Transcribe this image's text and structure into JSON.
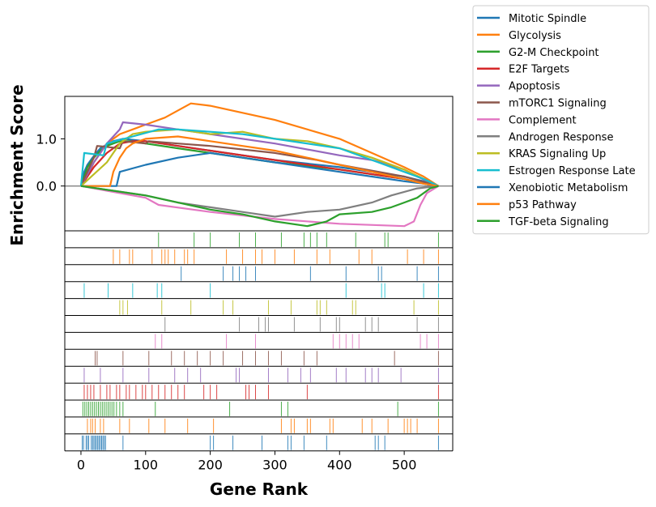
{
  "chart_data": {
    "type": "line",
    "title": "",
    "xlabel": "Gene Rank",
    "ylabel": "Enrichment Score",
    "xlim": [
      -25,
      575
    ],
    "ylim": [
      -0.95,
      1.9
    ],
    "xticks": [
      0,
      100,
      200,
      300,
      400,
      500
    ],
    "yticks": [
      0.0,
      1.0
    ],
    "ytick_labels": [
      "0.0",
      "1.0"
    ],
    "grid": false,
    "legend_position": "outside-top-right",
    "zero_line_color": "#808080",
    "series": [
      {
        "name": "Mitotic Spindle",
        "color": "#1f77b4",
        "x": [
          0,
          5,
          10,
          18,
          25,
          30,
          40,
          50,
          65,
          100,
          150,
          200,
          300,
          400,
          500,
          530,
          553
        ],
        "y": [
          0,
          0.3,
          0.45,
          0.6,
          0.72,
          0.8,
          0.88,
          0.95,
          1.0,
          0.95,
          0.85,
          0.75,
          0.55,
          0.4,
          0.2,
          0.1,
          0
        ],
        "hits": [
          2,
          4,
          8,
          10,
          12,
          16,
          18,
          20,
          22,
          24,
          26,
          28,
          30,
          32,
          34,
          36,
          38,
          65,
          200,
          205,
          235,
          280,
          320,
          325,
          345,
          380,
          455,
          460,
          470,
          553
        ]
      },
      {
        "name": "Glycolysis",
        "color": "#ff7f0e",
        "x": [
          0,
          10,
          20,
          40,
          60,
          80,
          100,
          130,
          170,
          200,
          300,
          400,
          450,
          500,
          530,
          553
        ],
        "y": [
          0,
          0.2,
          0.5,
          0.9,
          1.1,
          1.2,
          1.3,
          1.45,
          1.75,
          1.7,
          1.4,
          1.0,
          0.7,
          0.4,
          0.2,
          0
        ],
        "hits": [
          10,
          15,
          18,
          22,
          30,
          35,
          60,
          75,
          105,
          130,
          165,
          205,
          310,
          325,
          330,
          350,
          355,
          385,
          390,
          435,
          450,
          475,
          500,
          505,
          510,
          520,
          553
        ]
      },
      {
        "name": "G2-M Checkpoint",
        "color": "#2ca02c",
        "x": [
          0,
          5,
          10,
          20,
          30,
          40,
          50,
          60,
          80,
          100,
          150,
          200,
          300,
          400,
          500,
          530,
          553
        ],
        "y": [
          0,
          0.2,
          0.4,
          0.6,
          0.75,
          0.85,
          0.9,
          0.95,
          0.95,
          0.9,
          0.8,
          0.7,
          0.5,
          0.35,
          0.15,
          0.05,
          0
        ],
        "hits": [
          3,
          6,
          9,
          12,
          15,
          18,
          21,
          24,
          27,
          30,
          33,
          36,
          39,
          42,
          45,
          48,
          51,
          55,
          60,
          65,
          115,
          230,
          310,
          320,
          490,
          553
        ]
      },
      {
        "name": "E2F Targets",
        "color": "#d62728",
        "x": [
          0,
          10,
          20,
          30,
          40,
          50,
          60,
          80,
          100,
          150,
          200,
          300,
          400,
          500,
          530,
          553
        ],
        "y": [
          0,
          0.2,
          0.4,
          0.55,
          0.7,
          0.8,
          0.9,
          0.95,
          0.95,
          0.85,
          0.75,
          0.55,
          0.35,
          0.15,
          0.05,
          0
        ],
        "hits": [
          5,
          10,
          15,
          20,
          30,
          40,
          45,
          55,
          60,
          70,
          75,
          85,
          95,
          100,
          110,
          120,
          130,
          140,
          150,
          160,
          190,
          200,
          210,
          255,
          260,
          270,
          290,
          350,
          553
        ]
      },
      {
        "name": "Apoptosis",
        "color": "#9467bd",
        "x": [
          0,
          20,
          40,
          60,
          65,
          100,
          150,
          200,
          300,
          400,
          450,
          500,
          520,
          553
        ],
        "y": [
          0,
          0.5,
          0.9,
          1.2,
          1.35,
          1.3,
          1.2,
          1.1,
          0.9,
          0.65,
          0.55,
          0.35,
          0.2,
          0
        ],
        "hits": [
          5,
          30,
          65,
          105,
          145,
          165,
          185,
          240,
          245,
          290,
          320,
          340,
          355,
          395,
          410,
          440,
          450,
          460,
          495,
          553
        ]
      },
      {
        "name": "mTORC1 Signaling",
        "color": "#8c564b",
        "x": [
          0,
          10,
          20,
          25,
          60,
          65,
          100,
          105,
          150,
          200,
          300,
          365,
          400,
          500,
          553
        ],
        "y": [
          0,
          0.3,
          0.6,
          0.85,
          0.8,
          0.95,
          0.9,
          0.95,
          0.9,
          0.85,
          0.7,
          0.55,
          0.45,
          0.2,
          0
        ],
        "hits": [
          22,
          25,
          65,
          105,
          140,
          160,
          180,
          200,
          220,
          250,
          270,
          290,
          310,
          345,
          365,
          485,
          553
        ]
      },
      {
        "name": "Complement",
        "color": "#e377c2",
        "x": [
          0,
          100,
          120,
          200,
          300,
          400,
          500,
          515,
          525,
          535,
          553
        ],
        "y": [
          0,
          -0.25,
          -0.4,
          -0.55,
          -0.7,
          -0.8,
          -0.85,
          -0.75,
          -0.4,
          -0.15,
          0
        ],
        "hits": [
          115,
          125,
          225,
          270,
          390,
          400,
          410,
          420,
          430,
          525,
          535,
          553
        ]
      },
      {
        "name": "Androgen Response",
        "color": "#7f7f7f",
        "x": [
          0,
          100,
          150,
          200,
          250,
          300,
          350,
          400,
          450,
          480,
          520,
          553
        ],
        "y": [
          0,
          -0.2,
          -0.35,
          -0.45,
          -0.55,
          -0.65,
          -0.55,
          -0.5,
          -0.35,
          -0.2,
          -0.05,
          0
        ],
        "hits": [
          130,
          245,
          275,
          285,
          290,
          330,
          370,
          395,
          400,
          440,
          450,
          460,
          520,
          553
        ]
      },
      {
        "name": "KRAS Signaling Up",
        "color": "#bcbd22",
        "x": [
          0,
          40,
          60,
          80,
          100,
          150,
          200,
          250,
          300,
          350,
          400,
          450,
          500,
          515,
          553
        ],
        "y": [
          0,
          0.5,
          0.9,
          1.1,
          1.15,
          1.2,
          1.1,
          1.15,
          1.0,
          0.95,
          0.8,
          0.6,
          0.35,
          0.25,
          0
        ],
        "hits": [
          60,
          65,
          72,
          125,
          170,
          220,
          235,
          290,
          325,
          365,
          370,
          380,
          420,
          425,
          515,
          553
        ]
      },
      {
        "name": "Estrogen Response Late",
        "color": "#17becf",
        "x": [
          0,
          5,
          35,
          40,
          80,
          120,
          150,
          200,
          250,
          300,
          400,
          460,
          500,
          530,
          553
        ],
        "y": [
          0,
          0.7,
          0.65,
          0.9,
          1.05,
          1.2,
          1.2,
          1.15,
          1.1,
          1.0,
          0.8,
          0.5,
          0.3,
          0.15,
          0
        ],
        "hits": [
          5,
          42,
          80,
          118,
          125,
          200,
          410,
          465,
          470,
          530,
          553
        ]
      },
      {
        "name": "Xenobiotic Metabolism",
        "color": "#1f77b4",
        "x": [
          0,
          55,
          60,
          100,
          150,
          200,
          250,
          300,
          350,
          400,
          450,
          500,
          530,
          553
        ],
        "y": [
          0,
          0,
          0.3,
          0.45,
          0.6,
          0.7,
          0.6,
          0.5,
          0.4,
          0.3,
          0.2,
          0.1,
          0.05,
          0
        ],
        "hits": [
          155,
          220,
          235,
          245,
          255,
          270,
          355,
          410,
          460,
          465,
          520,
          553
        ]
      },
      {
        "name": "p53 Pathway",
        "color": "#ff7f0e",
        "x": [
          0,
          45,
          50,
          60,
          70,
          80,
          100,
          150,
          200,
          250,
          300,
          350,
          400,
          450,
          500,
          530,
          553
        ],
        "y": [
          0,
          0,
          0.3,
          0.6,
          0.8,
          0.9,
          1.0,
          1.05,
          0.95,
          0.85,
          0.75,
          0.6,
          0.45,
          0.3,
          0.15,
          0.05,
          0
        ],
        "hits": [
          50,
          60,
          75,
          80,
          110,
          125,
          130,
          135,
          145,
          160,
          165,
          175,
          225,
          250,
          270,
          280,
          300,
          330,
          365,
          385,
          430,
          450,
          505,
          530,
          553
        ]
      },
      {
        "name": "TGF-beta Signaling",
        "color": "#2ca02c",
        "x": [
          0,
          50,
          100,
          150,
          200,
          250,
          300,
          350,
          380,
          400,
          450,
          480,
          500,
          520,
          540,
          553
        ],
        "y": [
          0,
          -0.1,
          -0.2,
          -0.35,
          -0.5,
          -0.6,
          -0.75,
          -0.85,
          -0.75,
          -0.6,
          -0.55,
          -0.45,
          -0.35,
          -0.25,
          -0.05,
          0
        ],
        "hits": [
          120,
          175,
          200,
          245,
          270,
          310,
          345,
          355,
          365,
          380,
          425,
          470,
          475,
          553
        ]
      }
    ]
  }
}
